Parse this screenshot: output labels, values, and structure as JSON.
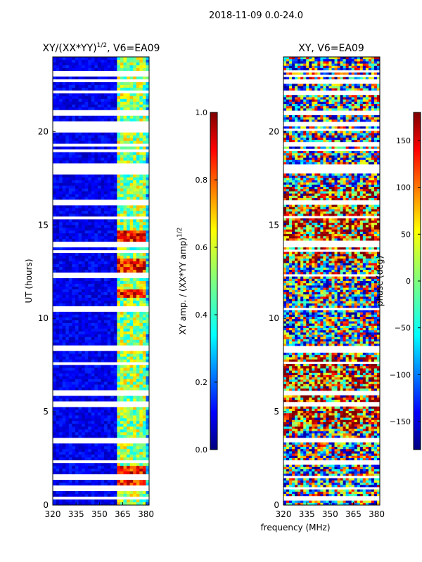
{
  "page": {
    "suptitle": "2018-11-09 0.0-24.0",
    "shared_xlabel": "frequency (MHz)"
  },
  "colors": {
    "jet": [
      "#00007f",
      "#0000ff",
      "#007fff",
      "#00ffff",
      "#7fff7f",
      "#ffff00",
      "#ff7f00",
      "#ff0000",
      "#7f0000"
    ],
    "flag": "#ffffff",
    "background": "#ffffff"
  },
  "chart_data": [
    {
      "type": "heatmap",
      "title": "XY/(XX*YY)^1/2, V6=EA09",
      "title_main": "XY/(XX*YY)",
      "title_exp": "1/2",
      "title_tail": ", V6=EA09",
      "xlabel": "frequency (MHz)",
      "ylabel": "UT (hours)",
      "xlim": [
        320,
        382
      ],
      "ylim": [
        0,
        24
      ],
      "xticks": [
        320,
        335,
        350,
        365,
        380
      ],
      "yticks": [
        0,
        5,
        10,
        15,
        20
      ],
      "colorbar": {
        "label_main": "XY amp. / (XX*YY amp)",
        "label_exp": "1/2",
        "range": [
          0.0,
          1.0
        ],
        "ticks": [
          "0.0",
          "0.2",
          "0.4",
          "0.6",
          "0.8",
          "1.0"
        ]
      },
      "flagged_hours": [
        0.35,
        0.9,
        1.5,
        2.3,
        3.4,
        3.55,
        5.4,
        6.0,
        7.6,
        8.3,
        8.45,
        10.5,
        12.3,
        13.6,
        13.85,
        14.05,
        15.4,
        16.2,
        17.8,
        18.0,
        18.2,
        19.0,
        19.3,
        20.1,
        20.4,
        21.0,
        22.1,
        22.7,
        23.0,
        23.2
      ],
      "high_amp_hours": [
        1.2,
        1.8,
        11.3,
        12.6,
        13.0,
        14.0,
        14.4
      ]
    },
    {
      "type": "heatmap",
      "title": "XY, V6=EA09",
      "xlabel": "frequency (MHz)",
      "ylabel": "",
      "xlim": [
        320,
        382
      ],
      "ylim": [
        0,
        24
      ],
      "xticks": [
        320,
        335,
        350,
        365,
        380
      ],
      "yticks": [
        0,
        5,
        10,
        15,
        20
      ],
      "colorbar": {
        "label": "phase (deg)",
        "range": [
          -180,
          180
        ],
        "ticks": [
          "−150",
          "−100",
          "−50",
          "0",
          "50",
          "100",
          "150"
        ]
      }
    }
  ]
}
